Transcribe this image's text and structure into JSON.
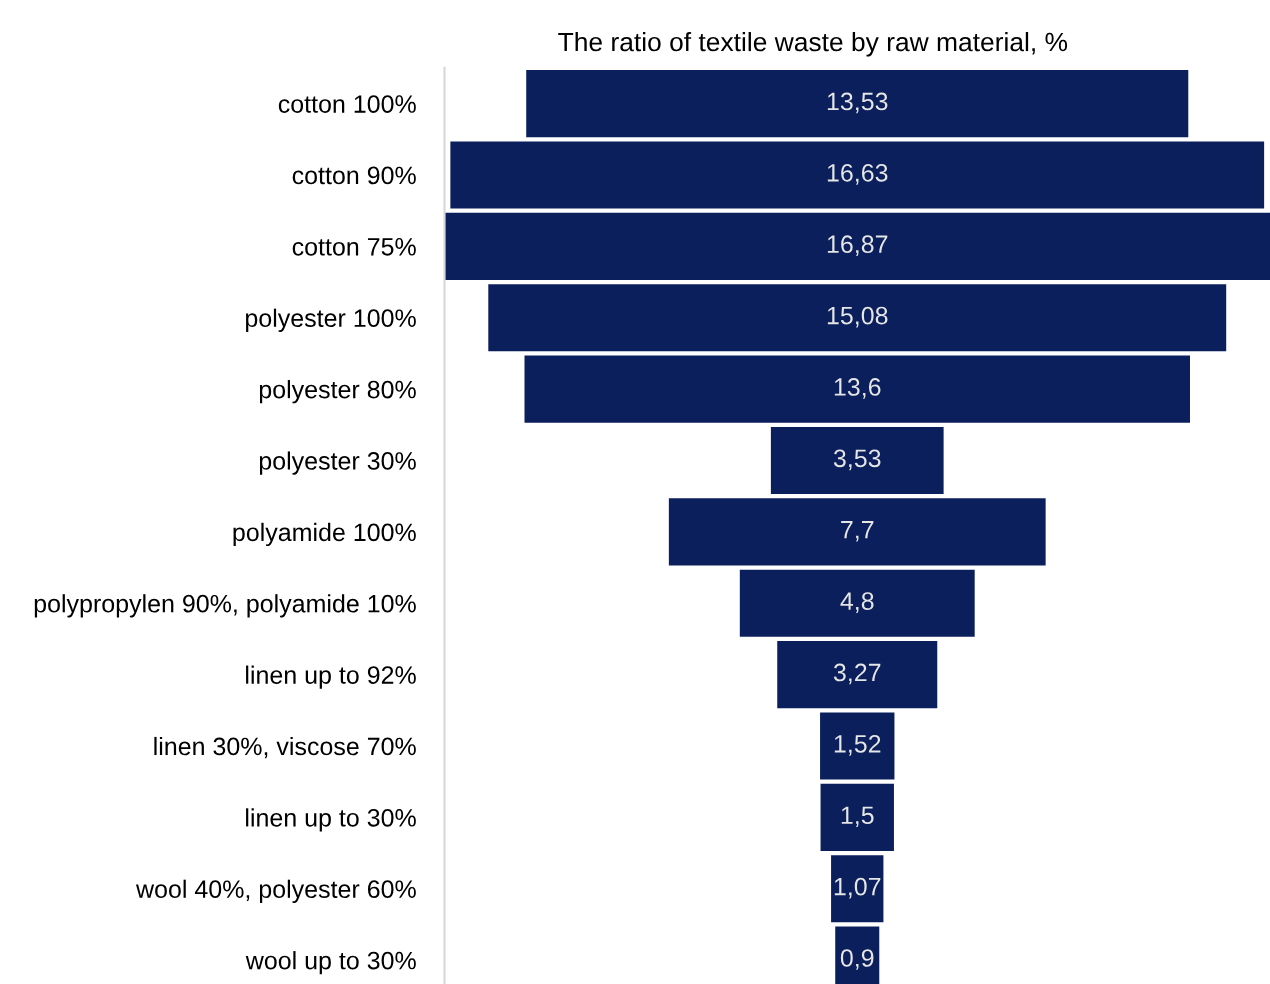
{
  "chart_data": {
    "type": "other",
    "title": "The ratio of textile waste by raw material, %",
    "categories": [
      "cotton 100%",
      "cotton 90%",
      "cotton 75%",
      "polyester 100%",
      "polyester 80%",
      "polyester 30%",
      "polyamide 100%",
      "polypropylen 90%, polyamide 10%",
      "linen up to 92%",
      "linen 30%, viscose 70%",
      "linen up to 30%",
      "wool 40%, polyester 60%",
      "wool up to 30%"
    ],
    "values": [
      13.53,
      16.63,
      16.87,
      15.08,
      13.6,
      3.53,
      7.7,
      4.8,
      3.27,
      1.52,
      1.5,
      1.07,
      0.9
    ],
    "value_labels": [
      "13,53",
      "16,63",
      "16,87",
      "15,08",
      "13,6",
      "3,53",
      "7,7",
      "4,8",
      "3,27",
      "1,52",
      "1,5",
      "1,07",
      "0,9"
    ],
    "color": "#0b1f5c"
  }
}
